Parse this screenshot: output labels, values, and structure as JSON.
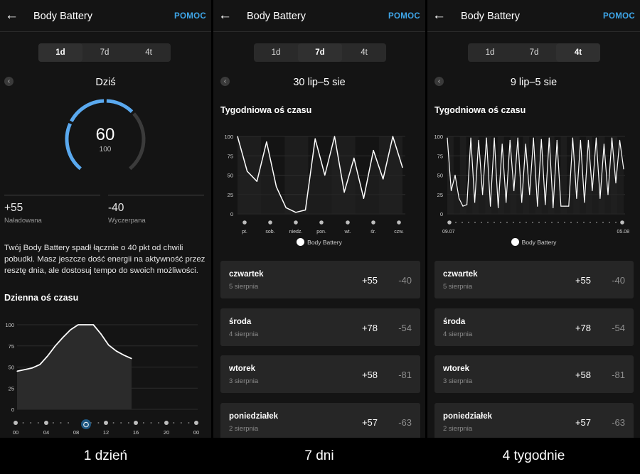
{
  "header": {
    "title": "Body Battery",
    "help_label": "POMOC"
  },
  "tabs": [
    "1d",
    "7d",
    "4t"
  ],
  "panels": [
    {
      "active_tab": "1d",
      "period": "Dziś",
      "gauge": {
        "value": "60",
        "max": "100"
      },
      "charged": {
        "value": "+55",
        "label": "Naładowana"
      },
      "drained": {
        "value": "-40",
        "label": "Wyczerpana"
      },
      "description": "Twój Body Battery spadł łącznie o 40 pkt od chwili pobudki. Masz jeszcze dość energii na aktywność przez resztę dnia, ale dostosuj tempo do swoich możliwości.",
      "section_title": "Dzienna oś czasu",
      "caption": "1 dzień"
    },
    {
      "active_tab": "7d",
      "period": "30 lip–5 sie",
      "section_title": "Tygodniowa oś czasu",
      "legend": "Body Battery",
      "caption": "7 dni"
    },
    {
      "active_tab": "4t",
      "period": "9 lip–5 sie",
      "section_title": "Tygodniowa oś czasu",
      "legend": "Body Battery",
      "caption": "4 tygodnie"
    }
  ],
  "days": [
    {
      "day": "czwartek",
      "date": "5 sierpnia",
      "charged": "+55",
      "drained": "-40"
    },
    {
      "day": "środa",
      "date": "4 sierpnia",
      "charged": "+78",
      "drained": "-54"
    },
    {
      "day": "wtorek",
      "date": "3 sierpnia",
      "charged": "+58",
      "drained": "-81"
    },
    {
      "day": "poniedziałek",
      "date": "2 sierpnia",
      "charged": "+57",
      "drained": "-63"
    }
  ],
  "colors": {
    "accent": "#3fa7ea",
    "gauge_active": "#5aa9ef",
    "gauge_inactive": "#3b3b3b",
    "background": "#141414",
    "card": "#262626"
  },
  "icons": {
    "back": "arrow-left-icon",
    "prev": "chevron-left-icon",
    "alarm": "alarm-clock-icon"
  },
  "chart_data": [
    {
      "type": "area",
      "ylim": [
        0,
        100
      ],
      "yticks": [
        "0",
        "25",
        "50",
        "75",
        "100"
      ],
      "xticks": [
        "00",
        "04",
        "08",
        "12",
        "16",
        "20",
        "00"
      ],
      "x": [
        0,
        1,
        2,
        3,
        4,
        5,
        6,
        7,
        8,
        9,
        10,
        11,
        12,
        13,
        14,
        15
      ],
      "series": [
        {
          "values": [
            45,
            47,
            49,
            53,
            63,
            75,
            85,
            94,
            100,
            100,
            100,
            89,
            76,
            69,
            64,
            60
          ]
        }
      ]
    },
    {
      "type": "line",
      "ylim": [
        0,
        100
      ],
      "yticks": [
        "0",
        "25",
        "50",
        "75",
        "100"
      ],
      "xticks": [
        "pt.",
        "sob.",
        "niedz.",
        "pon.",
        "wt.",
        "śr.",
        "czw."
      ],
      "series": [
        {
          "name": "Body Battery",
          "values": [
            100,
            55,
            42,
            93,
            35,
            8,
            2,
            5,
            97,
            50,
            100,
            28,
            72,
            20,
            82,
            45,
            100,
            60
          ]
        }
      ]
    },
    {
      "type": "line",
      "ylim": [
        0,
        100
      ],
      "yticks": [
        "0",
        "25",
        "50",
        "75",
        "100"
      ],
      "xticks": [
        "09.07",
        "05.08"
      ],
      "series": [
        {
          "name": "Body Battery",
          "values": [
            98,
            30,
            50,
            20,
            10,
            12,
            98,
            15,
            95,
            25,
            98,
            10,
            98,
            8,
            90,
            15,
            95,
            30,
            98,
            15,
            90,
            25,
            98,
            10,
            96,
            12,
            98,
            8,
            95,
            10,
            10,
            10,
            98,
            20,
            95,
            15,
            95,
            30,
            98,
            20,
            90,
            25,
            98,
            40,
            95,
            58
          ]
        }
      ]
    }
  ]
}
